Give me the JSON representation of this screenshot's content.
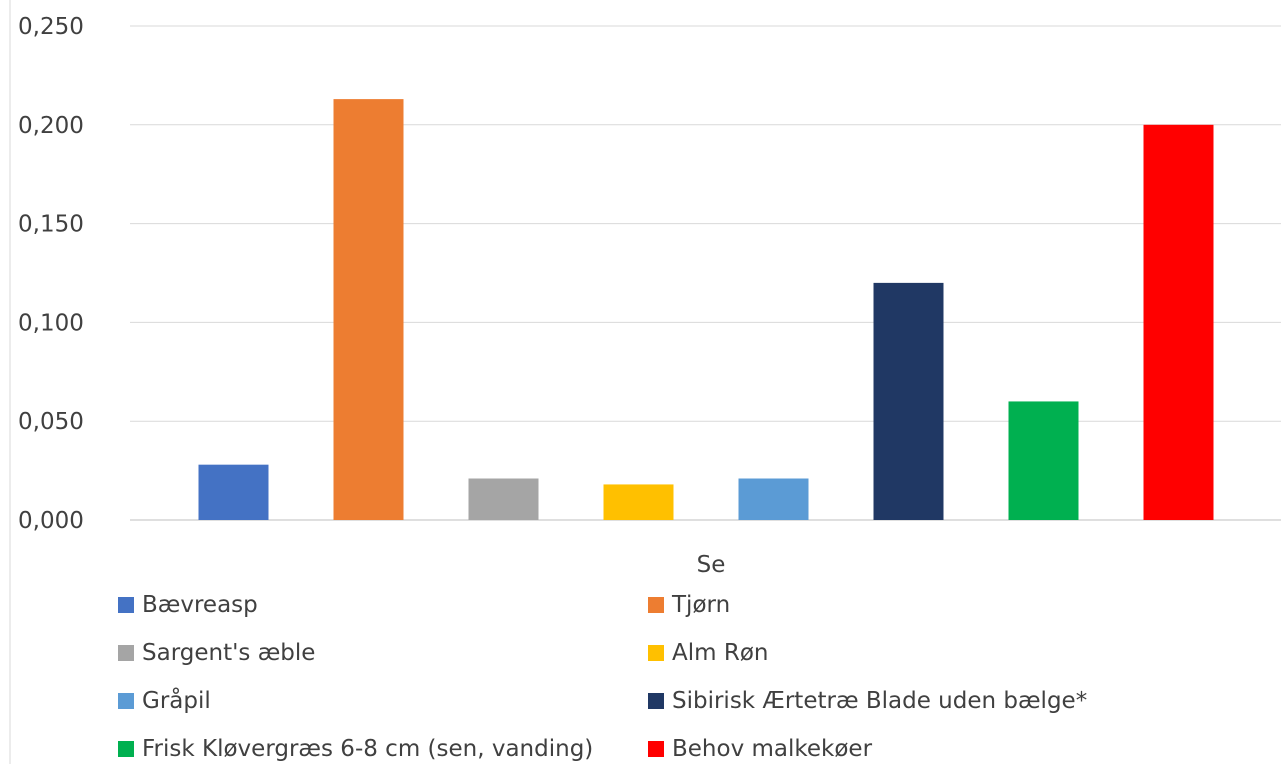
{
  "chart_data": {
    "type": "bar",
    "xlabel": "Se",
    "ylabel": "",
    "title": "",
    "ylim": [
      0,
      0.25
    ],
    "yticks": [
      "0,000",
      "0,050",
      "0,100",
      "0,150",
      "0,200",
      "0,250"
    ],
    "grid": true,
    "legend_position": "bottom",
    "series": [
      {
        "name": "Bævreasp",
        "value": 0.028,
        "color": "#4472C4"
      },
      {
        "name": "Tjørn",
        "value": 0.213,
        "color": "#ED7D31"
      },
      {
        "name": "Sargent's æble",
        "value": 0.021,
        "color": "#A5A5A5"
      },
      {
        "name": "Alm Røn",
        "value": 0.018,
        "color": "#FFC000"
      },
      {
        "name": "Gråpil",
        "value": 0.021,
        "color": "#5B9BD5"
      },
      {
        "name": "Sibirisk Ærtetræ Blade uden bælge*",
        "value": 0.12,
        "color": "#203864"
      },
      {
        "name": "Frisk Kløvergræs 6-8 cm (sen, vanding)",
        "value": 0.06,
        "color": "#00B050"
      },
      {
        "name": "Behov malkekøer",
        "value": 0.2,
        "color": "#FF0000"
      }
    ]
  }
}
